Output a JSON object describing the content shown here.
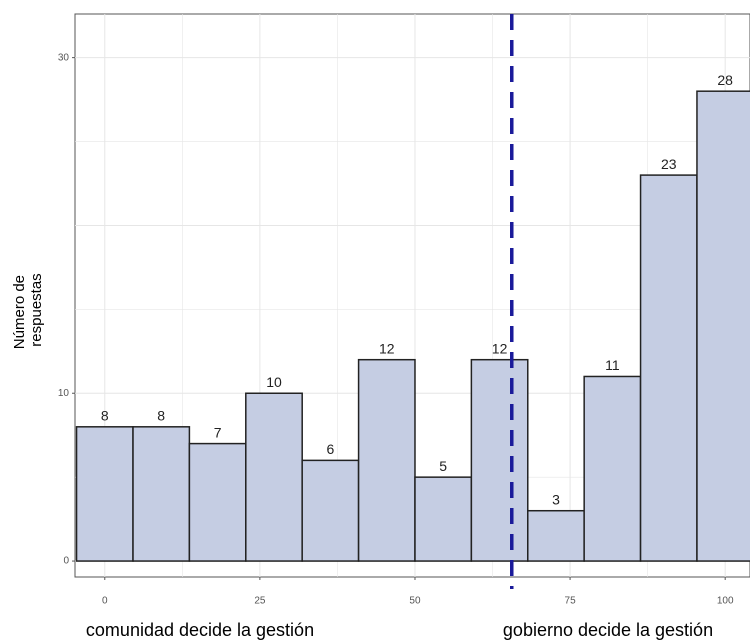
{
  "chart_data": {
    "type": "histogram",
    "y_label": [
      "Número de",
      "respuestas"
    ],
    "x_labels": [
      "comunidad decide la gestión",
      "gobierno decide la gestión"
    ],
    "bins": [
      -4.55,
      4.55,
      13.64,
      22.73,
      31.82,
      40.91,
      50,
      59.09,
      68.18,
      77.27,
      86.36,
      95.45,
      104.55
    ],
    "values": [
      8,
      8,
      7,
      10,
      6,
      12,
      5,
      12,
      3,
      11,
      23,
      28
    ],
    "color": "#c5cde3",
    "edge_color": "#222222",
    "xlim": [
      -4.8,
      104
    ],
    "ylim": [
      -0.95,
      32.6
    ],
    "xticks": [
      0,
      25,
      50,
      75,
      100
    ],
    "yticks": [
      0,
      10,
      30
    ],
    "ygrid": [
      0,
      5,
      10,
      15,
      20,
      25,
      30
    ],
    "xgrid": [
      0,
      12.5,
      25,
      37.5,
      50,
      62.5,
      75,
      87.5,
      100
    ],
    "grid": true,
    "vline": {
      "value": 65.6,
      "color": "#1a1a9a"
    }
  }
}
